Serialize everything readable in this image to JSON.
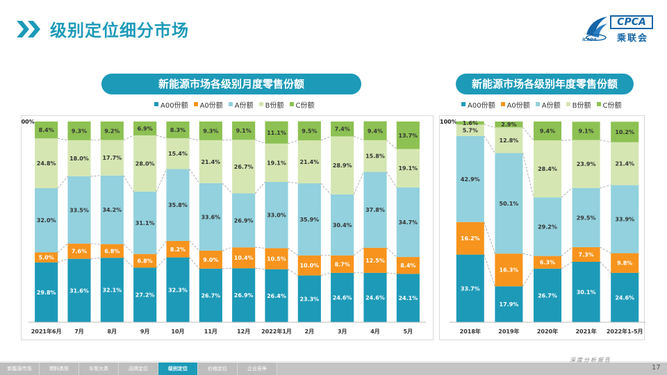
{
  "page": {
    "title": "级别定位细分市场",
    "page_number": "17",
    "slogan": "深度分析报告",
    "logo_text": "CPCA",
    "logo_cn": "乘联会",
    "logo_small": "iCADA",
    "nav_tabs": [
      "新能源市场",
      "燃料类型",
      "车型大类",
      "品牌定位",
      "级别定位",
      "价格定位",
      "企业竞争"
    ],
    "active_tab_index": 4
  },
  "colors": {
    "A00": "#1d9ab8",
    "A0": "#f7941d",
    "A": "#92d1dd",
    "B": "#d5e6b2",
    "C": "#8dc153",
    "accent": "#1d9ab8"
  },
  "legend": [
    "A00份额",
    "A0份额",
    "A份额",
    "B份额",
    "C份额"
  ],
  "chart_data": [
    {
      "type": "bar",
      "stacked": true,
      "title": "新能源市场各级别月度零售份额",
      "categories": [
        "2021年6月",
        "7月",
        "8月",
        "9月",
        "10月",
        "11月",
        "12月",
        "2022年1月",
        "2月",
        "3月",
        "4月",
        "5月"
      ],
      "series": [
        {
          "name": "A00份额",
          "values": [
            29.8,
            31.6,
            32.1,
            27.2,
            32.3,
            26.7,
            26.9,
            26.4,
            23.3,
            24.6,
            24.6,
            24.1
          ]
        },
        {
          "name": "A0份额",
          "values": [
            5.0,
            7.6,
            6.8,
            6.8,
            8.2,
            9.0,
            10.4,
            10.5,
            10.0,
            8.7,
            12.5,
            8.4
          ]
        },
        {
          "name": "A份额",
          "values": [
            32.0,
            33.5,
            34.2,
            31.1,
            35.8,
            33.6,
            26.9,
            33.0,
            35.9,
            30.4,
            37.8,
            34.7
          ]
        },
        {
          "name": "B份额",
          "values": [
            24.8,
            18.0,
            17.7,
            28.0,
            15.4,
            21.4,
            26.7,
            19.1,
            21.4,
            28.9,
            15.8,
            19.1
          ]
        },
        {
          "name": "C份额",
          "values": [
            8.4,
            9.3,
            9.2,
            6.9,
            8.3,
            9.3,
            9.1,
            11.1,
            9.5,
            7.4,
            9.4,
            13.7
          ]
        }
      ],
      "labels": [
        [
          "29.8%",
          "31.6%",
          "32.1%",
          "27.2%",
          "32.3%",
          "26.7%",
          "26.9%",
          "26.4%",
          "23.3%",
          "24.6%",
          "24.6%",
          "24.1%"
        ],
        [
          "5.0%",
          "7.6%",
          "6.8%",
          "6.8%",
          "8.2%",
          "9.0%",
          "10.4%",
          "10.5%",
          "10.0%",
          "8.7%",
          "12.5%",
          "8.4%"
        ],
        [
          "32.0%",
          "33.5%",
          "34.2%",
          "31.1%",
          "35.8%",
          "33.6%",
          "26.9%",
          "33.0%",
          "35.9%",
          "30.4%",
          "37.8%",
          "34.7%"
        ],
        [
          "24.8%",
          "18.0%",
          "17.7%",
          "28.0%",
          "15.4%",
          "21.4%",
          "26.7%",
          "19.1%",
          "21.4%",
          "28.9%",
          "15.8%",
          "19.1%"
        ],
        [
          "8.4%",
          "9.3%",
          "9.2%",
          "6.9%",
          "8.3%",
          "9.3%",
          "9.1%",
          "11.1%",
          "9.5%",
          "7.4%",
          "9.4%",
          "13.7%"
        ]
      ],
      "y_top_label": "100%",
      "ylim": [
        0,
        100
      ],
      "connector_lines": true
    },
    {
      "type": "bar",
      "stacked": true,
      "title": "新能源市场各级别年度零售份额",
      "categories": [
        "2018年",
        "2019年",
        "2020年",
        "2021年",
        "2022年1-5月"
      ],
      "series": [
        {
          "name": "A00份额",
          "values": [
            33.7,
            17.9,
            26.7,
            30.1,
            24.6
          ]
        },
        {
          "name": "A0份额",
          "values": [
            16.2,
            16.3,
            6.3,
            7.3,
            9.8
          ]
        },
        {
          "name": "A份额",
          "values": [
            42.9,
            50.1,
            29.2,
            29.5,
            33.9
          ]
        },
        {
          "name": "B份额",
          "values": [
            5.7,
            12.8,
            28.4,
            23.9,
            21.4
          ]
        },
        {
          "name": "C份额",
          "values": [
            1.6,
            2.9,
            9.4,
            9.1,
            10.2
          ]
        }
      ],
      "labels": [
        [
          "33.7%",
          "17.9%",
          "26.7%",
          "30.1%",
          "24.6%"
        ],
        [
          "16.2%",
          "16.3%",
          "6.3%",
          "7.3%",
          "9.8%"
        ],
        [
          "42.9%",
          "50.1%",
          "29.2%",
          "29.5%",
          "33.9%"
        ],
        [
          "5.7%",
          "12.8%",
          "28.4%",
          "23.9%",
          "21.4%"
        ],
        [
          "1.6%",
          "2.9%",
          "9.4%",
          "9.1%",
          "10.2%"
        ]
      ],
      "y_top_label": "100%",
      "ylim": [
        0,
        100
      ],
      "connector_lines": true
    }
  ]
}
